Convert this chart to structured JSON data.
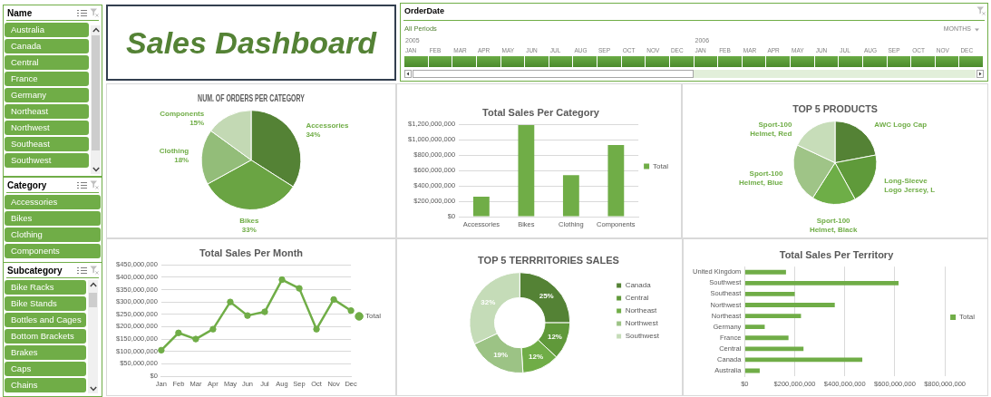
{
  "chart_data": [
    {
      "type": "other",
      "title": "Name",
      "annotations": [
        "Australia",
        "Canada",
        "Central",
        "France",
        "Germany",
        "Northeast",
        "Northwest",
        "Southeast",
        "Southwest"
      ]
    },
    {
      "type": "other",
      "title": "Sales Dashboard"
    },
    {
      "type": "other",
      "title": "OrderDate",
      "annotations": [
        "All Periods",
        "MONTHS",
        "2005",
        "2006"
      ],
      "categories": [
        "JAN",
        "FEB",
        "MAR",
        "APR",
        "MAY",
        "JUN",
        "JUL",
        "AUG",
        "SEP",
        "OCT",
        "NOV",
        "DEC",
        "JAN",
        "FEB",
        "MAR",
        "APR",
        "MAY",
        "JUN",
        "JUL",
        "AUG",
        "SEP",
        "OCT",
        "NOV",
        "DEC"
      ]
    },
    {
      "type": "other",
      "title": "Category",
      "annotations": [
        "Accessories",
        "Bikes",
        "Clothing",
        "Components"
      ]
    },
    {
      "type": "pie",
      "title": "NUM. OF ORDERS PER CATEGORY",
      "categories": [
        "Accessories",
        "Bikes",
        "Clothing",
        "Components"
      ],
      "values": [
        34,
        33,
        18,
        15
      ],
      "colors": [
        "#548235",
        "#6aa443",
        "#93bd79",
        "#c3d9b4"
      ],
      "value_labels": [
        "34%",
        "33%",
        "18%",
        "15%"
      ]
    },
    {
      "type": "bar",
      "title": "Total Sales Per Category",
      "categories": [
        "Accessories",
        "Bikes",
        "Clothing",
        "Components"
      ],
      "series": [
        {
          "name": "Total",
          "color": "#70ad47",
          "values": [
            260000000,
            1190000000,
            540000000,
            930000000
          ]
        }
      ],
      "ylim": [
        0,
        1200000000
      ],
      "yticks": [
        {
          "value": 0,
          "label": "$0"
        },
        {
          "value": 200000000,
          "label": "$200,000,000"
        },
        {
          "value": 400000000,
          "label": "$400,000,000"
        },
        {
          "value": 600000000,
          "label": "$600,000,000"
        },
        {
          "value": 800000000,
          "label": "$800,000,000"
        },
        {
          "value": 1000000000,
          "label": "$1,000,000,000"
        },
        {
          "value": 1200000000,
          "label": "$1,200,000,000"
        }
      ],
      "grid": "y",
      "legend": "right"
    },
    {
      "type": "pie",
      "title": "TOP 5 PRODUCTS",
      "categories": [
        "AWC Logo Cap",
        "Long-Sleeve Logo Jersey, L",
        "Sport-100 Helmet, Black",
        "Sport-100 Helmet, Blue",
        "Sport-100 Helmet, Red"
      ],
      "values": [
        22,
        20,
        17,
        23,
        18
      ],
      "colors": [
        "#548235",
        "#5f9a3a",
        "#6eae47",
        "#9fc487",
        "#c7ddb9"
      ]
    },
    {
      "type": "other",
      "title": "Subcategory",
      "annotations": [
        "Bike Racks",
        "Bike Stands",
        "Bottles and Cages",
        "Bottom Brackets",
        "Brakes",
        "Caps",
        "Chains"
      ]
    },
    {
      "type": "line",
      "title": "Total Sales Per Month",
      "categories": [
        "Jan",
        "Feb",
        "Mar",
        "Apr",
        "May",
        "Jun",
        "Jul",
        "Aug",
        "Sep",
        "Oct",
        "Nov",
        "Dec"
      ],
      "series": [
        {
          "name": "Total",
          "color": "#70ad47",
          "values": [
            105000000,
            175000000,
            150000000,
            190000000,
            300000000,
            245000000,
            260000000,
            390000000,
            355000000,
            190000000,
            310000000,
            265000000
          ]
        }
      ],
      "ylim": [
        0,
        450000000
      ],
      "yticks": [
        {
          "value": 0,
          "label": "$0"
        },
        {
          "value": 50000000,
          "label": "$50,000,000"
        },
        {
          "value": 100000000,
          "label": "$100,000,000"
        },
        {
          "value": 150000000,
          "label": "$150,000,000"
        },
        {
          "value": 200000000,
          "label": "$200,000,000"
        },
        {
          "value": 250000000,
          "label": "$250,000,000"
        },
        {
          "value": 300000000,
          "label": "$300,000,000"
        },
        {
          "value": 350000000,
          "label": "$350,000,000"
        },
        {
          "value": 400000000,
          "label": "$400,000,000"
        },
        {
          "value": 450000000,
          "label": "$450,000,000"
        }
      ],
      "grid": "y",
      "legend": "right",
      "marker": "circle"
    },
    {
      "type": "donut",
      "title": "TOP 5 TERRRITORIES SALES",
      "categories": [
        "Canada",
        "Central",
        "Northeast",
        "Northwest",
        "Southwest"
      ],
      "values": [
        25,
        12,
        12,
        19,
        32
      ],
      "colors": [
        "#548235",
        "#60993a",
        "#70ad47",
        "#9cc385",
        "#c5dcb8"
      ],
      "value_labels": [
        "25%",
        "12%",
        "12%",
        "19%",
        "32%"
      ],
      "legend": "right"
    },
    {
      "type": "bar",
      "orientation": "horizontal",
      "title": "Total Sales Per Territory",
      "categories": [
        "United Kingdom",
        "Southwest",
        "Southeast",
        "Northwest",
        "Northeast",
        "Germany",
        "France",
        "Central",
        "Canada",
        "Australia"
      ],
      "series": [
        {
          "name": "Total",
          "color": "#70ad47",
          "values": [
            165000000,
            615000000,
            200000000,
            360000000,
            225000000,
            80000000,
            175000000,
            235000000,
            470000000,
            60000000
          ]
        }
      ],
      "xlim": [
        0,
        800000000
      ],
      "xticks": [
        {
          "value": 0,
          "label": "$0"
        },
        {
          "value": 200000000,
          "label": "$200,000,000"
        },
        {
          "value": 400000000,
          "label": "$400,000,000"
        },
        {
          "value": 600000000,
          "label": "$600,000,000"
        },
        {
          "value": 800000000,
          "label": "$800,000,000"
        }
      ],
      "grid": "x",
      "legend": "right"
    }
  ]
}
